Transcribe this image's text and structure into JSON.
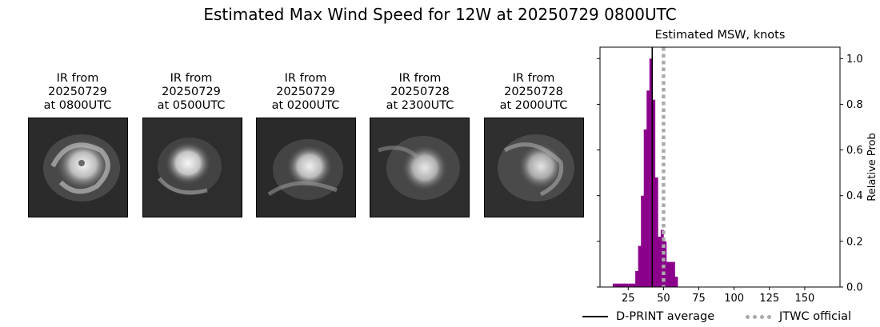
{
  "title": "Estimated Max Wind Speed for 12W at 20250729 0800UTC",
  "ir_images": [
    {
      "line1": "IR from",
      "line2": "20250729",
      "line3": "at 0800UTC"
    },
    {
      "line1": "IR from",
      "line2": "20250729",
      "line3": "at 0500UTC"
    },
    {
      "line1": "IR from",
      "line2": "20250729",
      "line3": "at 0200UTC"
    },
    {
      "line1": "IR from",
      "line2": "20250728",
      "line3": "at 2300UTC"
    },
    {
      "line1": "IR from",
      "line2": "20250728",
      "line3": "at 2000UTC"
    }
  ],
  "chart_data": {
    "type": "bar",
    "title": "Estimated MSW, knots",
    "xlabel": "",
    "ylabel": "Relative Prob",
    "xlim": [
      5,
      175
    ],
    "ylim": [
      0,
      1.05
    ],
    "x_ticks": [
      25,
      50,
      75,
      100,
      125,
      150
    ],
    "y_ticks": [
      0.0,
      0.2,
      0.4,
      0.6,
      0.8,
      1.0
    ],
    "bin_width": 2,
    "bar_color": "#8b008b",
    "bins": [
      {
        "x": 15,
        "value": 0.015
      },
      {
        "x": 17,
        "value": 0.015
      },
      {
        "x": 19,
        "value": 0.015
      },
      {
        "x": 21,
        "value": 0.015
      },
      {
        "x": 23,
        "value": 0.015
      },
      {
        "x": 25,
        "value": 0.015
      },
      {
        "x": 27,
        "value": 0.015
      },
      {
        "x": 29,
        "value": 0.015
      },
      {
        "x": 31,
        "value": 0.07
      },
      {
        "x": 33,
        "value": 0.18
      },
      {
        "x": 35,
        "value": 0.4
      },
      {
        "x": 37,
        "value": 0.69
      },
      {
        "x": 39,
        "value": 0.86
      },
      {
        "x": 41,
        "value": 1.0
      },
      {
        "x": 43,
        "value": 0.82
      },
      {
        "x": 45,
        "value": 0.48
      },
      {
        "x": 47,
        "value": 0.22
      },
      {
        "x": 49,
        "value": 0.25
      },
      {
        "x": 51,
        "value": 0.2
      },
      {
        "x": 53,
        "value": 0.11
      },
      {
        "x": 55,
        "value": 0.11
      },
      {
        "x": 57,
        "value": 0.11
      },
      {
        "x": 59,
        "value": 0.045
      }
    ],
    "dprint_average": 42,
    "jtwc_official": 50,
    "legend": [
      {
        "label": "D-PRINT average",
        "style": "solid",
        "color": "#000000"
      },
      {
        "label": "JTWC official",
        "style": "dotted",
        "color": "#aaaaaa"
      }
    ],
    "legend_position": "bottom"
  }
}
